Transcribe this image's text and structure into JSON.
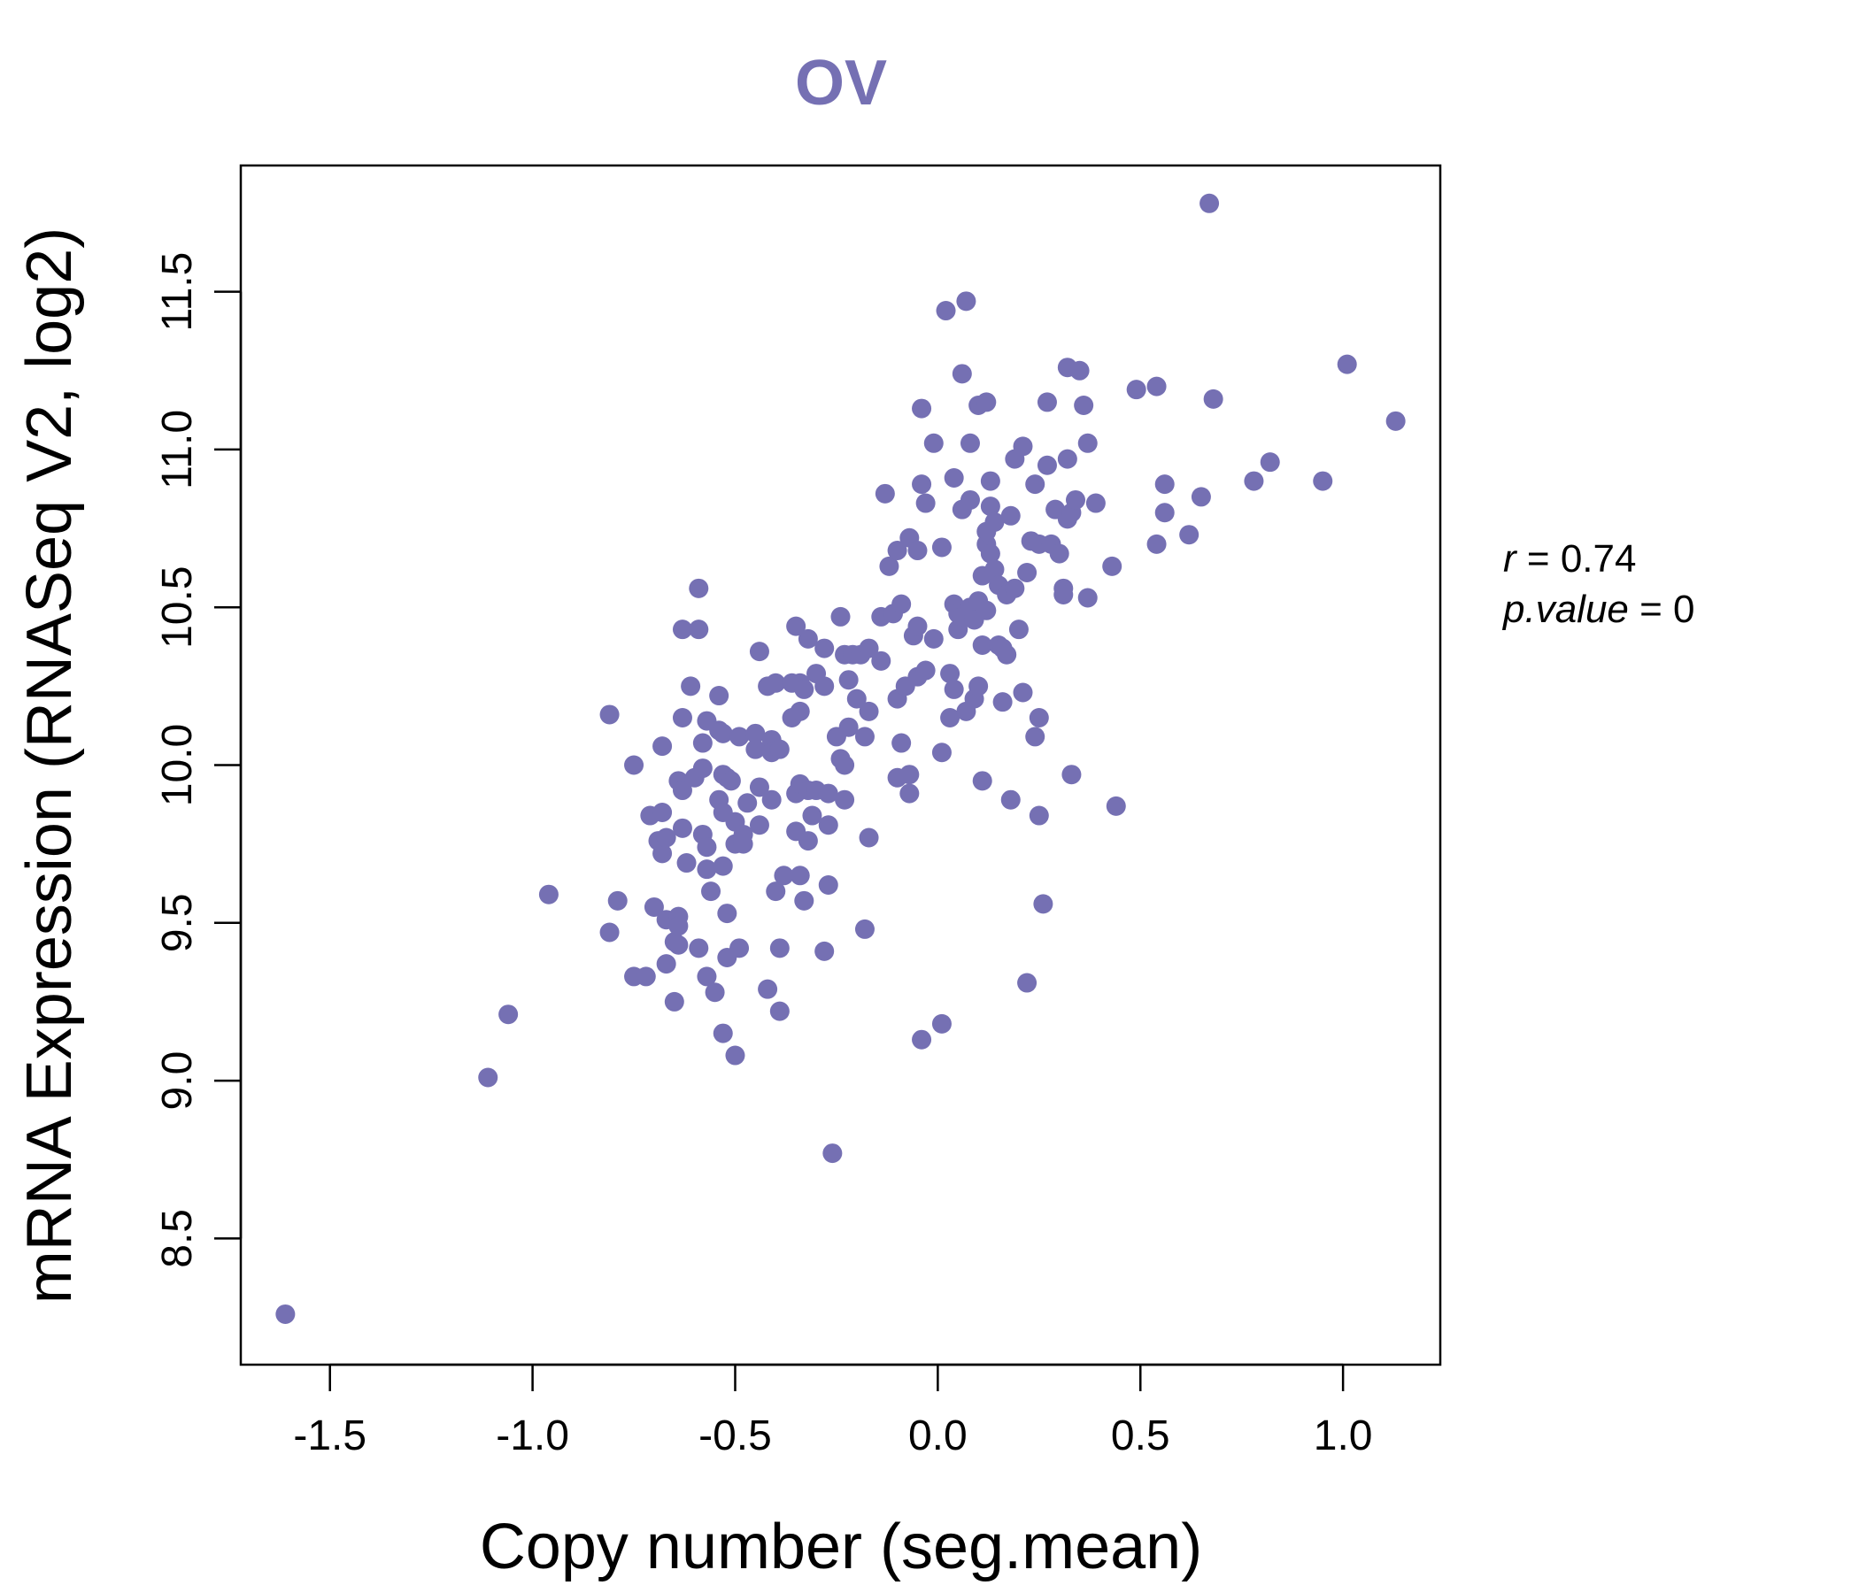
{
  "chart_data": {
    "type": "scatter",
    "title": "OV",
    "xlabel": "Copy number (seg.mean)",
    "ylabel": "mRNA Expression (RNASeq V2, log2)",
    "xlim": [
      -1.72,
      1.24
    ],
    "ylim": [
      8.1,
      11.9
    ],
    "xticks": [
      "-1.5",
      "-1.0",
      "-0.5",
      "0.0",
      "0.5",
      "1.0"
    ],
    "yticks": [
      "8.5",
      "9.0",
      "9.5",
      "10.0",
      "10.5",
      "11.0",
      "11.5"
    ],
    "point_color": "#7570b3",
    "stats": {
      "r_label": "r",
      "r_value": "0.74",
      "p_label": "p.value",
      "p_value": "0"
    },
    "points": [
      [
        -1.61,
        8.26
      ],
      [
        -1.11,
        9.01
      ],
      [
        -1.06,
        9.21
      ],
      [
        -0.96,
        9.59
      ],
      [
        -0.81,
        10.16
      ],
      [
        -0.81,
        9.47
      ],
      [
        -0.79,
        9.57
      ],
      [
        -0.75,
        10.0
      ],
      [
        -0.75,
        9.33
      ],
      [
        -0.72,
        9.33
      ],
      [
        -0.71,
        9.84
      ],
      [
        -0.7,
        9.55
      ],
      [
        -0.69,
        9.76
      ],
      [
        -0.68,
        10.06
      ],
      [
        -0.68,
        9.85
      ],
      [
        -0.68,
        9.72
      ],
      [
        -0.67,
        9.77
      ],
      [
        -0.67,
        9.51
      ],
      [
        -0.67,
        9.37
      ],
      [
        -0.65,
        9.44
      ],
      [
        -0.65,
        9.25
      ],
      [
        -0.64,
        9.95
      ],
      [
        -0.64,
        9.52
      ],
      [
        -0.64,
        9.49
      ],
      [
        -0.64,
        9.43
      ],
      [
        -0.63,
        10.43
      ],
      [
        -0.63,
        10.15
      ],
      [
        -0.63,
        9.92
      ],
      [
        -0.63,
        9.8
      ],
      [
        -0.62,
        9.69
      ],
      [
        -0.61,
        10.25
      ],
      [
        -0.6,
        9.96
      ],
      [
        -0.59,
        10.56
      ],
      [
        -0.59,
        10.43
      ],
      [
        -0.59,
        9.42
      ],
      [
        -0.58,
        10.07
      ],
      [
        -0.58,
        9.99
      ],
      [
        -0.58,
        9.78
      ],
      [
        -0.57,
        10.14
      ],
      [
        -0.57,
        9.74
      ],
      [
        -0.57,
        9.67
      ],
      [
        -0.57,
        9.33
      ],
      [
        -0.56,
        9.6
      ],
      [
        -0.55,
        9.28
      ],
      [
        -0.54,
        10.22
      ],
      [
        -0.54,
        10.11
      ],
      [
        -0.54,
        9.89
      ],
      [
        -0.53,
        10.1
      ],
      [
        -0.53,
        9.97
      ],
      [
        -0.53,
        9.85
      ],
      [
        -0.53,
        9.68
      ],
      [
        -0.53,
        9.15
      ],
      [
        -0.52,
        9.96
      ],
      [
        -0.52,
        9.53
      ],
      [
        -0.52,
        9.39
      ],
      [
        -0.51,
        9.95
      ],
      [
        -0.5,
        9.82
      ],
      [
        -0.5,
        9.75
      ],
      [
        -0.5,
        9.08
      ],
      [
        -0.49,
        10.09
      ],
      [
        -0.49,
        9.42
      ],
      [
        -0.48,
        9.78
      ],
      [
        -0.48,
        9.75
      ],
      [
        -0.47,
        9.88
      ],
      [
        -0.45,
        10.1
      ],
      [
        -0.45,
        10.05
      ],
      [
        -0.44,
        10.36
      ],
      [
        -0.44,
        9.93
      ],
      [
        -0.44,
        9.81
      ],
      [
        -0.42,
        10.25
      ],
      [
        -0.42,
        9.29
      ],
      [
        -0.41,
        10.08
      ],
      [
        -0.41,
        10.04
      ],
      [
        -0.41,
        9.89
      ],
      [
        -0.4,
        10.26
      ],
      [
        -0.4,
        9.6
      ],
      [
        -0.39,
        10.05
      ],
      [
        -0.39,
        9.42
      ],
      [
        -0.39,
        9.22
      ],
      [
        -0.38,
        9.65
      ],
      [
        -0.36,
        10.15
      ],
      [
        -0.36,
        10.26
      ],
      [
        -0.35,
        10.44
      ],
      [
        -0.35,
        9.91
      ],
      [
        -0.35,
        9.79
      ],
      [
        -0.34,
        10.17
      ],
      [
        -0.34,
        10.26
      ],
      [
        -0.34,
        9.94
      ],
      [
        -0.34,
        9.65
      ],
      [
        -0.33,
        10.24
      ],
      [
        -0.33,
        9.57
      ],
      [
        -0.32,
        10.4
      ],
      [
        -0.32,
        9.92
      ],
      [
        -0.32,
        9.76
      ],
      [
        -0.31,
        9.84
      ],
      [
        -0.3,
        10.29
      ],
      [
        -0.3,
        9.92
      ],
      [
        -0.28,
        10.25
      ],
      [
        -0.28,
        10.37
      ],
      [
        -0.28,
        9.41
      ],
      [
        -0.27,
        9.91
      ],
      [
        -0.27,
        9.81
      ],
      [
        -0.27,
        9.62
      ],
      [
        -0.26,
        8.77
      ],
      [
        -0.25,
        10.09
      ],
      [
        -0.24,
        10.47
      ],
      [
        -0.24,
        10.02
      ],
      [
        -0.23,
        10.35
      ],
      [
        -0.23,
        10.0
      ],
      [
        -0.23,
        9.89
      ],
      [
        -0.22,
        10.27
      ],
      [
        -0.22,
        10.12
      ],
      [
        -0.21,
        10.35
      ],
      [
        -0.2,
        10.21
      ],
      [
        -0.19,
        10.35
      ],
      [
        -0.18,
        10.09
      ],
      [
        -0.18,
        9.48
      ],
      [
        -0.17,
        10.37
      ],
      [
        -0.17,
        10.17
      ],
      [
        -0.17,
        9.77
      ],
      [
        -0.14,
        10.47
      ],
      [
        -0.14,
        10.33
      ],
      [
        -0.13,
        10.86
      ],
      [
        -0.12,
        10.63
      ],
      [
        -0.11,
        10.48
      ],
      [
        -0.1,
        10.68
      ],
      [
        -0.1,
        10.21
      ],
      [
        -0.1,
        9.96
      ],
      [
        -0.09,
        10.51
      ],
      [
        -0.09,
        10.07
      ],
      [
        -0.08,
        10.25
      ],
      [
        -0.07,
        9.97
      ],
      [
        -0.07,
        9.91
      ],
      [
        -0.07,
        10.72
      ],
      [
        -0.06,
        10.41
      ],
      [
        -0.05,
        10.68
      ],
      [
        -0.05,
        10.28
      ],
      [
        -0.05,
        10.44
      ],
      [
        -0.04,
        10.89
      ],
      [
        -0.04,
        9.13
      ],
      [
        -0.03,
        10.3
      ],
      [
        -0.01,
        11.02
      ],
      [
        -0.01,
        10.4
      ],
      [
        -0.03,
        10.83
      ],
      [
        -0.04,
        11.13
      ],
      [
        0.01,
        9.18
      ],
      [
        0.01,
        10.04
      ],
      [
        0.01,
        10.69
      ],
      [
        0.02,
        11.44
      ],
      [
        0.03,
        10.15
      ],
      [
        0.03,
        10.29
      ],
      [
        0.04,
        10.24
      ],
      [
        0.04,
        10.91
      ],
      [
        0.04,
        10.51
      ],
      [
        0.05,
        10.43
      ],
      [
        0.05,
        10.48
      ],
      [
        0.06,
        10.81
      ],
      [
        0.06,
        10.47
      ],
      [
        0.06,
        11.24
      ],
      [
        0.07,
        11.47
      ],
      [
        0.07,
        10.17
      ],
      [
        0.08,
        10.84
      ],
      [
        0.08,
        10.5
      ],
      [
        0.08,
        11.02
      ],
      [
        0.09,
        10.46
      ],
      [
        0.09,
        10.21
      ],
      [
        0.1,
        11.14
      ],
      [
        0.1,
        10.25
      ],
      [
        0.1,
        10.52
      ],
      [
        0.11,
        10.38
      ],
      [
        0.11,
        9.95
      ],
      [
        0.11,
        10.6
      ],
      [
        0.12,
        11.15
      ],
      [
        0.12,
        10.7
      ],
      [
        0.12,
        10.74
      ],
      [
        0.12,
        10.49
      ],
      [
        0.13,
        10.9
      ],
      [
        0.13,
        10.67
      ],
      [
        0.13,
        10.82
      ],
      [
        0.14,
        10.77
      ],
      [
        0.14,
        10.62
      ],
      [
        0.15,
        10.38
      ],
      [
        0.15,
        10.57
      ],
      [
        0.16,
        10.37
      ],
      [
        0.16,
        10.2
      ],
      [
        0.17,
        10.35
      ],
      [
        0.17,
        10.54
      ],
      [
        0.18,
        10.79
      ],
      [
        0.18,
        9.89
      ],
      [
        0.19,
        10.97
      ],
      [
        0.19,
        10.56
      ],
      [
        0.2,
        10.43
      ],
      [
        0.21,
        11.01
      ],
      [
        0.21,
        10.23
      ],
      [
        0.22,
        9.31
      ],
      [
        0.22,
        10.61
      ],
      [
        0.23,
        10.71
      ],
      [
        0.24,
        10.89
      ],
      [
        0.24,
        10.09
      ],
      [
        0.25,
        10.15
      ],
      [
        0.25,
        9.84
      ],
      [
        0.25,
        10.7
      ],
      [
        0.26,
        9.56
      ],
      [
        0.27,
        11.15
      ],
      [
        0.27,
        10.95
      ],
      [
        0.28,
        10.7
      ],
      [
        0.29,
        10.81
      ],
      [
        0.3,
        10.67
      ],
      [
        0.31,
        10.56
      ],
      [
        0.31,
        10.54
      ],
      [
        0.32,
        10.97
      ],
      [
        0.32,
        10.78
      ],
      [
        0.32,
        11.26
      ],
      [
        0.33,
        10.8
      ],
      [
        0.33,
        9.97
      ],
      [
        0.34,
        10.84
      ],
      [
        0.35,
        11.25
      ],
      [
        0.36,
        11.14
      ],
      [
        0.37,
        11.02
      ],
      [
        0.37,
        10.53
      ],
      [
        0.39,
        10.83
      ],
      [
        0.43,
        10.63
      ],
      [
        0.44,
        9.87
      ],
      [
        0.49,
        11.19
      ],
      [
        0.54,
        11.2
      ],
      [
        0.54,
        10.7
      ],
      [
        0.56,
        10.89
      ],
      [
        0.56,
        10.8
      ],
      [
        0.62,
        10.73
      ],
      [
        0.65,
        10.85
      ],
      [
        0.67,
        11.78
      ],
      [
        0.68,
        11.16
      ],
      [
        0.78,
        10.9
      ],
      [
        0.82,
        10.96
      ],
      [
        0.95,
        10.9
      ],
      [
        1.01,
        11.27
      ],
      [
        1.13,
        11.09
      ]
    ]
  }
}
